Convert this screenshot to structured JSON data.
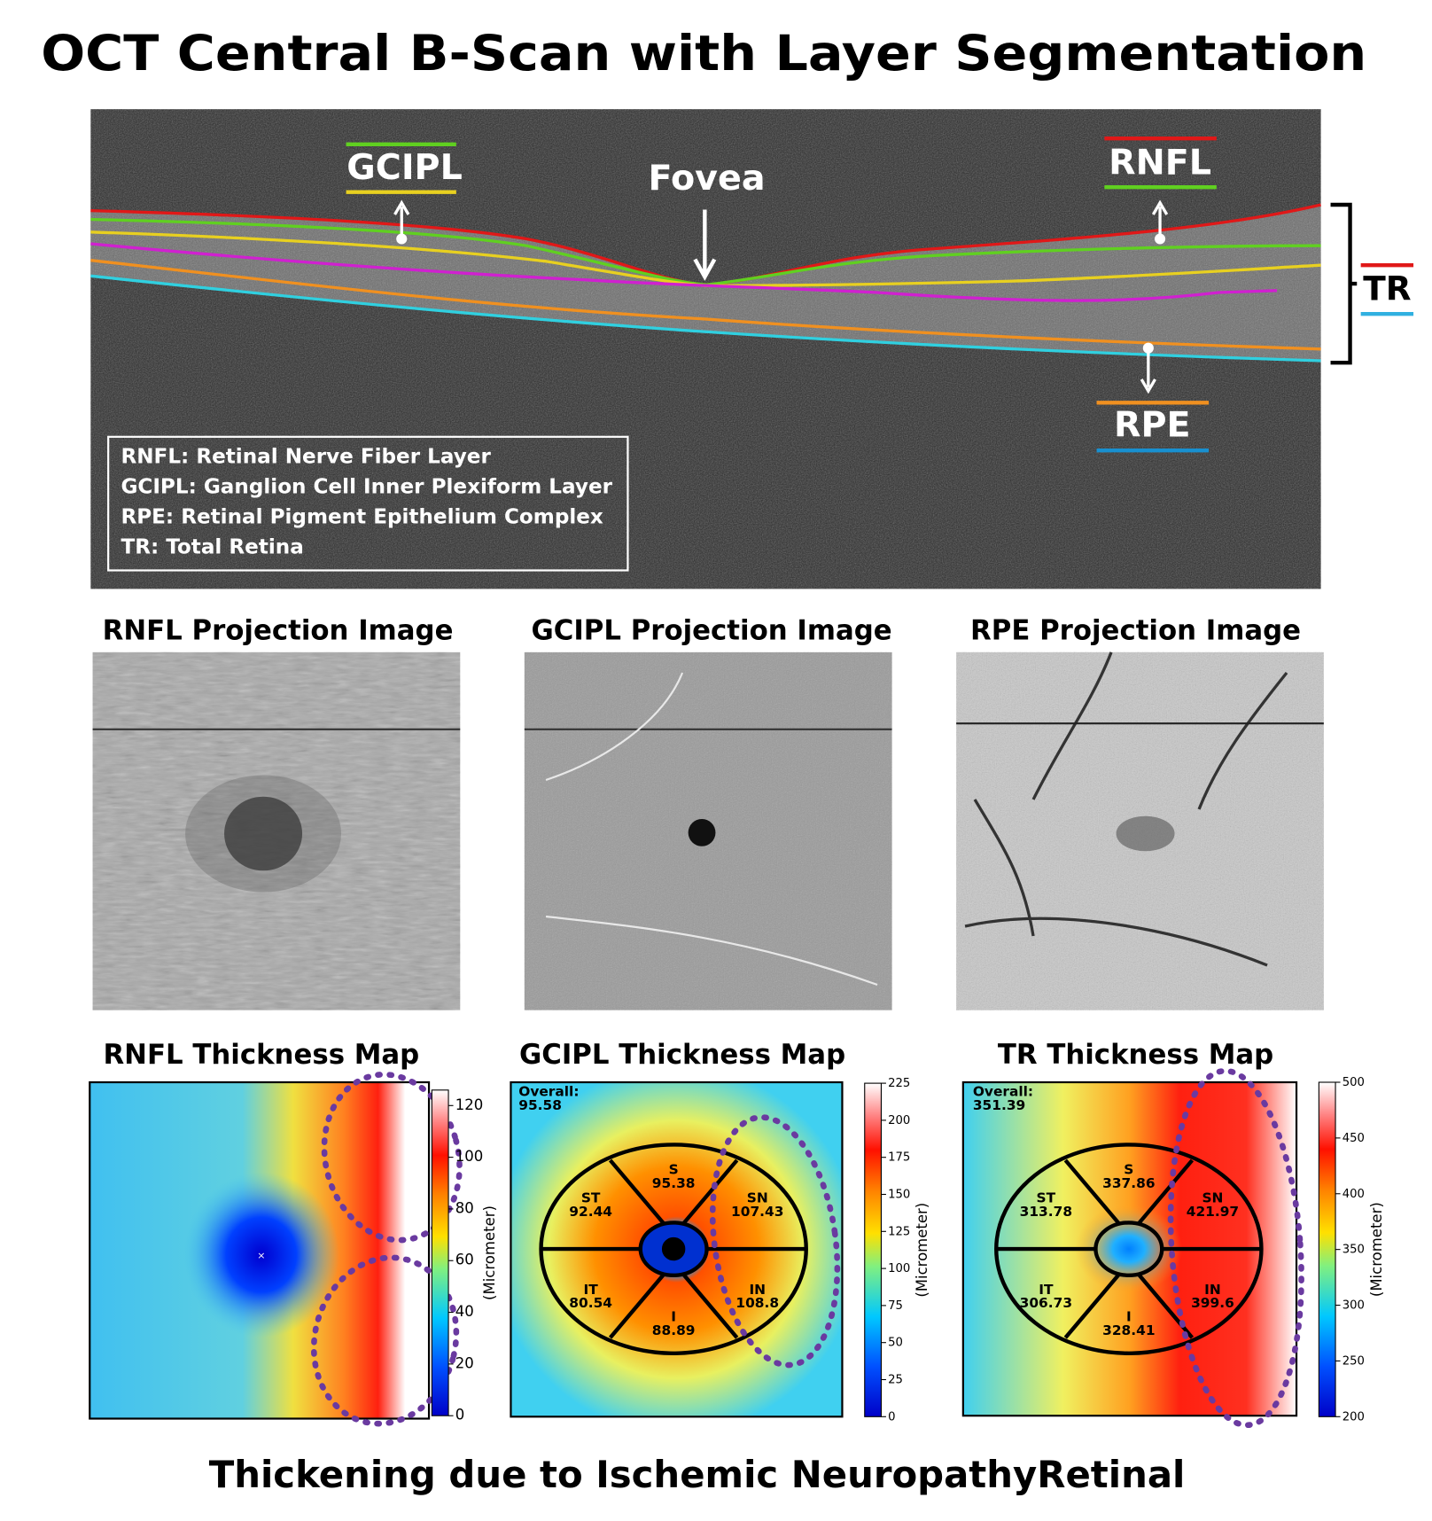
{
  "title": "OCT Central B-Scan with Layer Segmentation",
  "bscan": {
    "labels": {
      "gcipl": "GCIPL",
      "fovea": "Fovea",
      "rnfl": "RNFL",
      "tr": "TR",
      "rpe": "RPE"
    },
    "legend": [
      "RNFL: Retinal Nerve Fiber Layer",
      "GCIPL: Ganglion Cell Inner Plexiform Layer",
      "RPE: Retinal Pigment Epithelium Complex",
      "TR: Total Retina"
    ]
  },
  "projections": [
    "RNFL Projection Image",
    "GCIPL Projection Image",
    "RPE Projection Image"
  ],
  "thickness_maps": [
    {
      "title": "RNFL Thickness Map",
      "colorbar_label": "(Micrometer)",
      "colorbar_range": [
        0,
        126
      ],
      "colorbar_ticks": [
        0,
        20,
        40,
        60,
        80,
        100,
        120
      ]
    },
    {
      "title": "GCIPL Thickness Map",
      "colorbar_label": "(Micrometer)",
      "colorbar_range": [
        0,
        225
      ],
      "colorbar_ticks": [
        0,
        25,
        50,
        75,
        100,
        125,
        150,
        175,
        200,
        225
      ],
      "overall_label": "Overall:",
      "overall": 95.58,
      "sectors": [
        {
          "name": "S",
          "value": 95.38
        },
        {
          "name": "ST",
          "value": 92.44
        },
        {
          "name": "SN",
          "value": 107.43
        },
        {
          "name": "IT",
          "value": 80.54
        },
        {
          "name": "IN",
          "value": 108.8
        },
        {
          "name": "I",
          "value": 88.89
        }
      ]
    },
    {
      "title": "TR Thickness Map",
      "colorbar_label": "(Micrometer)",
      "colorbar_range": [
        200,
        500
      ],
      "colorbar_ticks": [
        200,
        250,
        300,
        350,
        400,
        450,
        500
      ],
      "overall_label": "Overall:",
      "overall": 351.39,
      "sectors": [
        {
          "name": "S",
          "value": 337.86
        },
        {
          "name": "ST",
          "value": 313.78
        },
        {
          "name": "SN",
          "value": 421.97
        },
        {
          "name": "IT",
          "value": 306.73
        },
        {
          "name": "IN",
          "value": 399.6
        },
        {
          "name": "I",
          "value": 328.41
        }
      ]
    }
  ],
  "footer": "Thickening due to Ischemic NeuropathyRetinal"
}
